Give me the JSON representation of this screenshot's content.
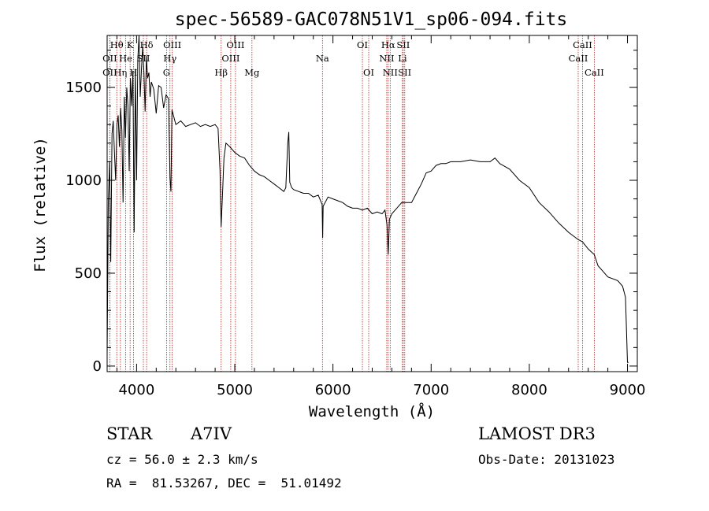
{
  "chart_data": {
    "type": "line",
    "title": "spec-56589-GAC078N51V1_sp06-094.fits",
    "xlabel": "Wavelength (Å)",
    "ylabel": "Flux (relative)",
    "xlim": [
      3700,
      9100
    ],
    "ylim": [
      -30,
      1780
    ],
    "xticks": [
      4000,
      5000,
      6000,
      7000,
      8000,
      9000
    ],
    "yticks": [
      0,
      500,
      1000,
      1500
    ],
    "xtick_labels": [
      "4000",
      "5000",
      "6000",
      "7000",
      "8000",
      "9000"
    ],
    "ytick_labels": [
      "0",
      "500",
      "1000",
      "1500"
    ],
    "series": [
      {
        "name": "flux",
        "x": [
          3700,
          3712,
          3725,
          3737,
          3750,
          3762,
          3775,
          3787,
          3800,
          3812,
          3825,
          3837,
          3850,
          3862,
          3875,
          3887,
          3900,
          3912,
          3925,
          3937,
          3950,
          3962,
          3975,
          3987,
          4000,
          4012,
          4025,
          4037,
          4050,
          4062,
          4075,
          4087,
          4100,
          4112,
          4125,
          4137,
          4150,
          4175,
          4200,
          4225,
          4250,
          4275,
          4300,
          4325,
          4340,
          4350,
          4360,
          4375,
          4400,
          4450,
          4500,
          4550,
          4600,
          4650,
          4700,
          4750,
          4800,
          4830,
          4850,
          4861,
          4875,
          4890,
          4910,
          4950,
          5000,
          5050,
          5100,
          5150,
          5200,
          5250,
          5300,
          5350,
          5400,
          5450,
          5500,
          5520,
          5540,
          5550,
          5560,
          5580,
          5600,
          5650,
          5700,
          5750,
          5800,
          5850,
          5890,
          5895,
          5900,
          5950,
          6000,
          6050,
          6100,
          6150,
          6200,
          6250,
          6300,
          6350,
          6400,
          6450,
          6500,
          6530,
          6550,
          6563,
          6575,
          6600,
          6650,
          6700,
          6750,
          6800,
          6850,
          6900,
          6950,
          7000,
          7050,
          7100,
          7150,
          7200,
          7300,
          7400,
          7500,
          7600,
          7650,
          7700,
          7800,
          7900,
          8000,
          8100,
          8200,
          8300,
          8400,
          8500,
          8540,
          8600,
          8662,
          8700,
          8800,
          8900,
          8950,
          8980,
          9000,
          9010
        ],
        "y": [
          60,
          880,
          1100,
          560,
          1250,
          1320,
          1150,
          1000,
          1300,
          1350,
          1180,
          1390,
          1270,
          880,
          1450,
          1230,
          1500,
          1400,
          1050,
          1550,
          1400,
          1590,
          720,
          1600,
          1000,
          1650,
          1780,
          1450,
          1600,
          1720,
          1580,
          1370,
          1670,
          1550,
          1580,
          1450,
          1530,
          1490,
          1360,
          1510,
          1500,
          1390,
          1460,
          1440,
          1010,
          940,
          1380,
          1350,
          1300,
          1320,
          1290,
          1300,
          1310,
          1290,
          1300,
          1290,
          1300,
          1280,
          1050,
          750,
          920,
          1120,
          1200,
          1180,
          1150,
          1130,
          1120,
          1080,
          1050,
          1030,
          1020,
          1000,
          980,
          960,
          940,
          960,
          1200,
          1260,
          990,
          960,
          950,
          940,
          930,
          930,
          910,
          920,
          870,
          690,
          860,
          910,
          900,
          890,
          880,
          860,
          850,
          850,
          840,
          850,
          820,
          830,
          820,
          840,
          760,
          600,
          790,
          820,
          850,
          880,
          880,
          880,
          930,
          980,
          1040,
          1050,
          1080,
          1090,
          1090,
          1100,
          1100,
          1110,
          1100,
          1100,
          1120,
          1090,
          1060,
          1000,
          960,
          880,
          830,
          770,
          720,
          680,
          670,
          630,
          600,
          540,
          480,
          460,
          430,
          370,
          20,
          20
        ]
      }
    ],
    "spectral_lines": [
      {
        "label": "Hθ",
        "wavelength": 3798,
        "row": 1
      },
      {
        "label": "OII",
        "wavelength": 3727,
        "row": 2
      },
      {
        "label": "OII",
        "wavelength": 3727,
        "row": 3
      },
      {
        "label": "Hη",
        "wavelength": 3835,
        "row": 3
      },
      {
        "label": "He",
        "wavelength": 3889,
        "row": 2
      },
      {
        "label": "K",
        "wavelength": 3934,
        "row": 1
      },
      {
        "label": "H",
        "wavelength": 3968,
        "row": 3
      },
      {
        "label": "SII",
        "wavelength": 4069,
        "row": 2
      },
      {
        "label": "Hδ",
        "wavelength": 4102,
        "row": 1
      },
      {
        "label": "OIII",
        "wavelength": 4363,
        "row": 1
      },
      {
        "label": "Hγ",
        "wavelength": 4340,
        "row": 2
      },
      {
        "label": "G",
        "wavelength": 4305,
        "row": 3
      },
      {
        "label": "Hβ",
        "wavelength": 4861,
        "row": 3
      },
      {
        "label": "OIII",
        "wavelength": 5007,
        "row": 1
      },
      {
        "label": "OIII",
        "wavelength": 4959,
        "row": 2
      },
      {
        "label": "Mg",
        "wavelength": 5175,
        "row": 3
      },
      {
        "label": "Na",
        "wavelength": 5893,
        "row": 2
      },
      {
        "label": "OI",
        "wavelength": 6300,
        "row": 1
      },
      {
        "label": "OI",
        "wavelength": 6364,
        "row": 3
      },
      {
        "label": "Hα",
        "wavelength": 6563,
        "row": 1
      },
      {
        "label": "NII",
        "wavelength": 6548,
        "row": 2
      },
      {
        "label": "NII",
        "wavelength": 6583,
        "row": 3
      },
      {
        "label": "SII",
        "wavelength": 6716,
        "row": 1
      },
      {
        "label": "Li",
        "wavelength": 6708,
        "row": 2
      },
      {
        "label": "SII",
        "wavelength": 6731,
        "row": 3
      },
      {
        "label": "CaII",
        "wavelength": 8542,
        "row": 1
      },
      {
        "label": "CaII",
        "wavelength": 8498,
        "row": 2
      },
      {
        "label": "CaII",
        "wavelength": 8662,
        "row": 3
      }
    ],
    "colors": {
      "spectrum": "#000000",
      "lines": "#b22222",
      "axes": "#000000"
    }
  },
  "info": {
    "object_type": "STAR",
    "subclass": "A7IV",
    "survey": "LAMOST DR3",
    "redshift": "cz = 56.0 ± 2.3 km/s",
    "obs_date": "Obs-Date: 20131023",
    "coords": "RA =  81.53267, DEC =  51.01492"
  }
}
